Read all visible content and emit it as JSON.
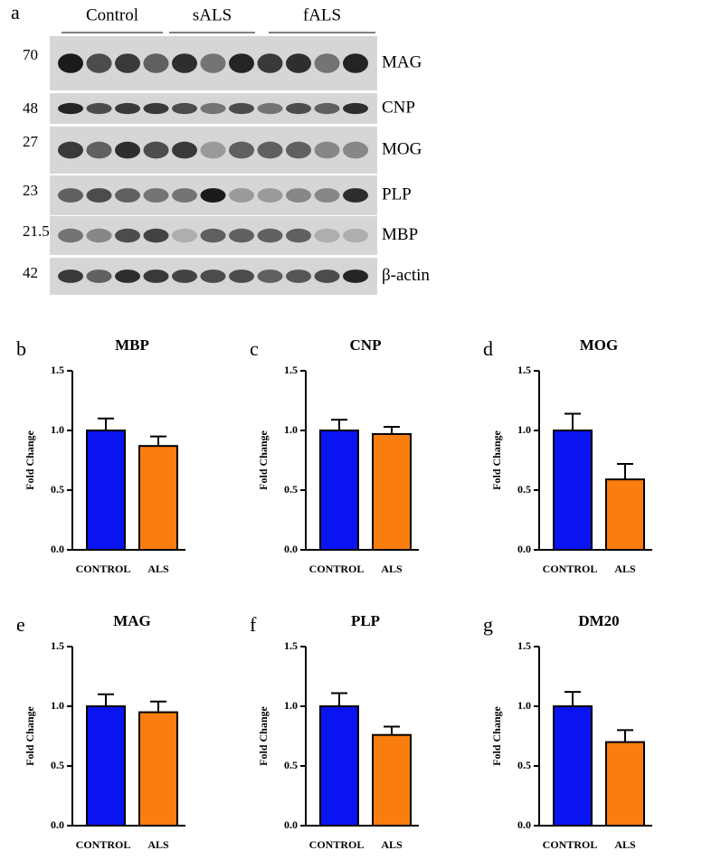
{
  "panel_a": {
    "letter": "a",
    "groups": [
      "Control",
      "sALS",
      "fALS"
    ],
    "rows": [
      {
        "mw": "70",
        "protein": "MAG"
      },
      {
        "mw": "48",
        "protein": "CNP"
      },
      {
        "mw": "27",
        "protein": "MOG"
      },
      {
        "mw": "23",
        "protein": "PLP"
      },
      {
        "mw": "21.5",
        "protein": "MBP"
      },
      {
        "mw": "42",
        "protein": "β-actin"
      }
    ]
  },
  "chart_data": [
    {
      "type": "bar",
      "letter": "b",
      "title": "MBP",
      "ylabel": "Fold Change",
      "categories": [
        "CONTROL",
        "ALS"
      ],
      "values": [
        1.0,
        0.87
      ],
      "errors": [
        0.1,
        0.08
      ],
      "colors": [
        "#0a14f0",
        "#f97d0f"
      ],
      "ylim": [
        0,
        1.5
      ],
      "yticks": [
        {
          "value": 0,
          "label": "0.0"
        },
        {
          "value": 0.5,
          "label": "0.5"
        },
        {
          "value": 1,
          "label": "1.0"
        },
        {
          "value": 1.5,
          "label": "1.5"
        }
      ]
    },
    {
      "type": "bar",
      "letter": "c",
      "title": "CNP",
      "ylabel": "Fold Change",
      "categories": [
        "CONTROL",
        "ALS"
      ],
      "values": [
        1.0,
        0.97
      ],
      "errors": [
        0.09,
        0.06
      ],
      "colors": [
        "#0a14f0",
        "#f97d0f"
      ],
      "ylim": [
        0,
        1.5
      ],
      "yticks": [
        {
          "value": 0,
          "label": "0.0"
        },
        {
          "value": 0.5,
          "label": "0.5"
        },
        {
          "value": 1,
          "label": "1.0"
        },
        {
          "value": 1.5,
          "label": "1.5"
        }
      ]
    },
    {
      "type": "bar",
      "letter": "d",
      "title": "MOG",
      "ylabel": "Fold Change",
      "categories": [
        "CONTROL",
        "ALS"
      ],
      "values": [
        1.0,
        0.59
      ],
      "errors": [
        0.14,
        0.13
      ],
      "colors": [
        "#0a14f0",
        "#f97d0f"
      ],
      "ylim": [
        0,
        1.5
      ],
      "yticks": [
        {
          "value": 0,
          "label": "0.0"
        },
        {
          "value": 0.5,
          "label": "0.5"
        },
        {
          "value": 1,
          "label": "1.0"
        },
        {
          "value": 1.5,
          "label": "1.5"
        }
      ]
    },
    {
      "type": "bar",
      "letter": "e",
      "title": "MAG",
      "ylabel": "Fold Change",
      "categories": [
        "CONTROL",
        "ALS"
      ],
      "values": [
        1.0,
        0.95
      ],
      "errors": [
        0.1,
        0.09
      ],
      "colors": [
        "#0a14f0",
        "#f97d0f"
      ],
      "ylim": [
        0,
        1.5
      ],
      "yticks": [
        {
          "value": 0,
          "label": "0.0"
        },
        {
          "value": 0.5,
          "label": "0.5"
        },
        {
          "value": 1,
          "label": "1.0"
        },
        {
          "value": 1.5,
          "label": "1.5"
        }
      ]
    },
    {
      "type": "bar",
      "letter": "f",
      "title": "PLP",
      "ylabel": "Fold Change",
      "categories": [
        "CONTROL",
        "ALS"
      ],
      "values": [
        1.0,
        0.76
      ],
      "errors": [
        0.11,
        0.07
      ],
      "colors": [
        "#0a14f0",
        "#f97d0f"
      ],
      "ylim": [
        0,
        1.5
      ],
      "yticks": [
        {
          "value": 0,
          "label": "0.0"
        },
        {
          "value": 0.5,
          "label": "0.5"
        },
        {
          "value": 1,
          "label": "1.0"
        },
        {
          "value": 1.5,
          "label": "1.5"
        }
      ]
    },
    {
      "type": "bar",
      "letter": "g",
      "title": "DM20",
      "ylabel": "Fold Change",
      "categories": [
        "CONTROL",
        "ALS"
      ],
      "values": [
        1.0,
        0.7
      ],
      "errors": [
        0.12,
        0.1
      ],
      "colors": [
        "#0a14f0",
        "#f97d0f"
      ],
      "ylim": [
        0,
        1.5
      ],
      "yticks": [
        {
          "value": 0,
          "label": "0.0"
        },
        {
          "value": 0.5,
          "label": "0.5"
        },
        {
          "value": 1,
          "label": "1.0"
        },
        {
          "value": 1.5,
          "label": "1.5"
        }
      ]
    }
  ]
}
